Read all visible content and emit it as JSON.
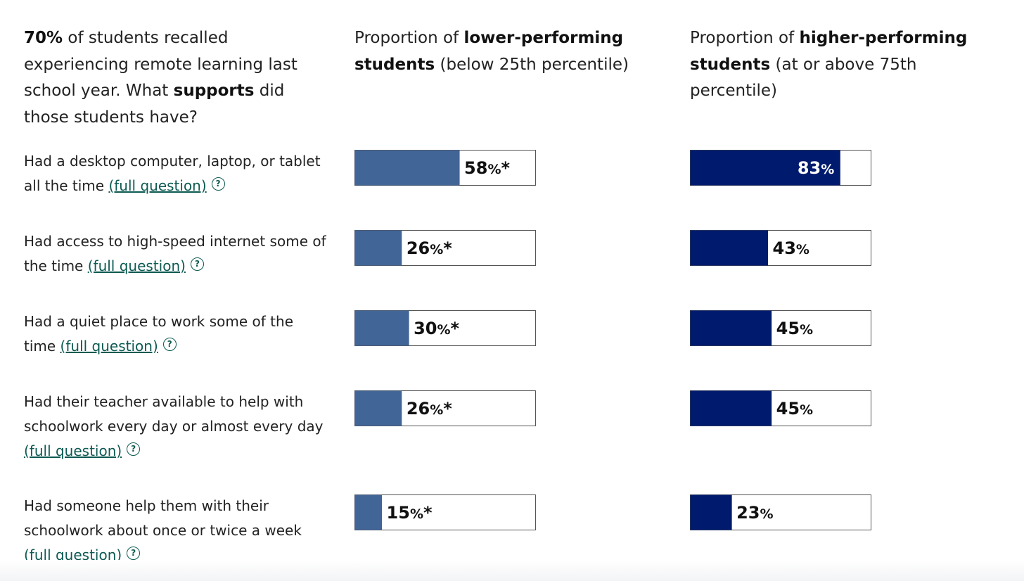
{
  "header": {
    "intro": {
      "pct": "70%",
      "a": " of students recalled experiencing remote learning last school year. What ",
      "bold": "supports",
      "b": " did those students have?"
    },
    "lower": {
      "a": "Proportion of ",
      "bold": "lower-performing students",
      "b": " (below 25th percentile)"
    },
    "higher": {
      "a": "Proportion of ",
      "bold": "higher-performing students",
      "b": " (at or above 75th percentile)"
    }
  },
  "link_text": "(full question)",
  "help_glyph": "?",
  "rows": [
    {
      "label": "Had a desktop computer, laptop, or tablet all the time "
    },
    {
      "label": "Had access to high-speed internet some of the time "
    },
    {
      "label": "Had a quiet place to work some of the time "
    },
    {
      "label": "Had their teacher available to help with schoolwork every day or almost every day "
    },
    {
      "label": "Had someone help them with their schoolwork about once or twice a week "
    }
  ],
  "colors": {
    "lower": "#426597",
    "higher": "#001a6e",
    "link": "#0d5a52"
  },
  "chart_data": {
    "type": "bar",
    "orientation": "horizontal",
    "xlim": [
      0,
      100
    ],
    "unit": "%",
    "categories": [
      "Had a desktop computer, laptop, or tablet all the time",
      "Had access to high-speed internet some of the time",
      "Had a quiet place to work some of the time",
      "Had their teacher available to help with schoolwork every day or almost every day",
      "Had someone help them with their schoolwork about once or twice a week"
    ],
    "series": [
      {
        "name": "lower-performing students (below 25th percentile)",
        "values": [
          58,
          26,
          30,
          26,
          15
        ],
        "marks": [
          "*",
          "*",
          "*",
          "*",
          "*"
        ]
      },
      {
        "name": "higher-performing students (at or above 75th percentile)",
        "values": [
          83,
          43,
          45,
          45,
          23
        ],
        "marks": [
          "",
          "",
          "",
          "",
          ""
        ]
      }
    ]
  }
}
